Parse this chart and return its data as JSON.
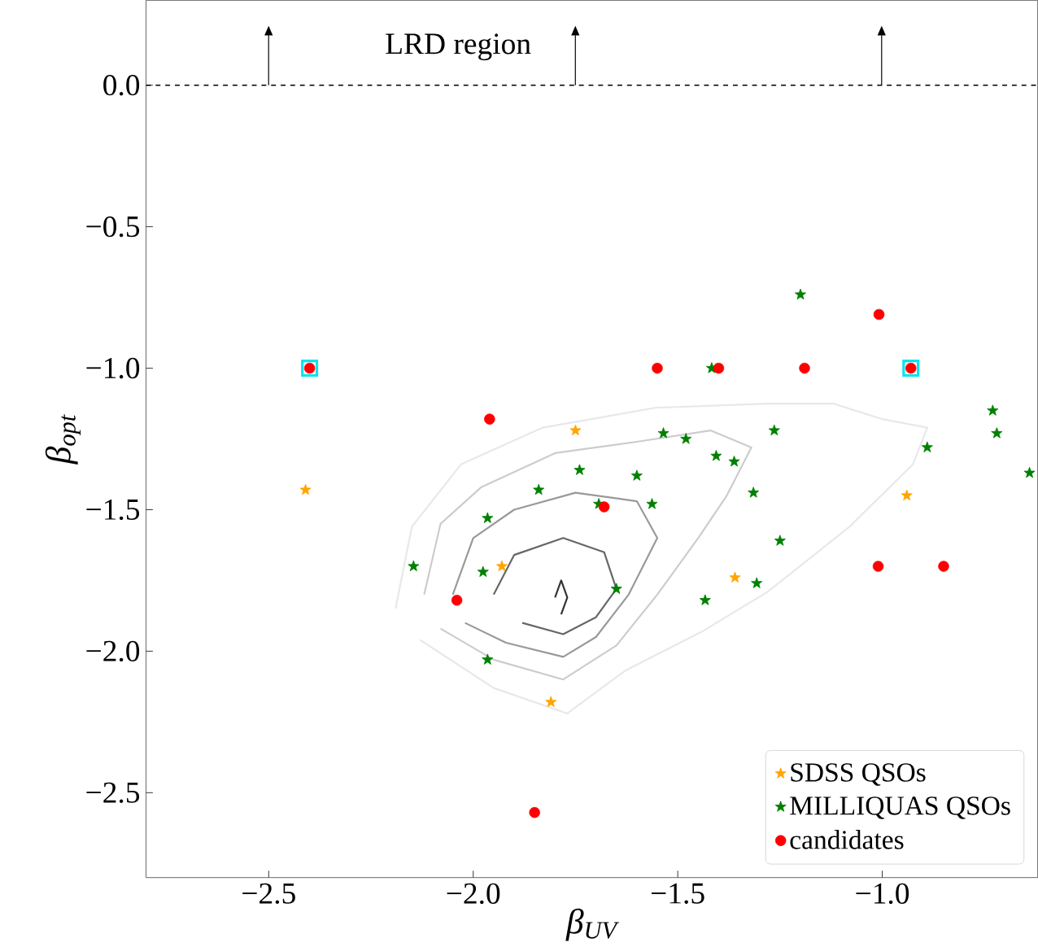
{
  "chart_data": {
    "type": "scatter",
    "xlabel": "β$_{UV}$",
    "ylabel": "β$_{opt}$",
    "xlim": [
      -2.8,
      -0.62
    ],
    "ylim": [
      -2.8,
      0.3
    ],
    "xticks": [
      {
        "value": -2.5,
        "label": "−2.5"
      },
      {
        "value": -2.0,
        "label": "−2.0"
      },
      {
        "value": -1.5,
        "label": "−1.5"
      },
      {
        "value": -1.0,
        "label": "−1.0"
      }
    ],
    "yticks": [
      {
        "value": 0.0,
        "label": "0.0"
      },
      {
        "value": -0.5,
        "label": "−0.5"
      },
      {
        "value": -1.0,
        "label": "−1.0"
      },
      {
        "value": -1.5,
        "label": "−1.5"
      },
      {
        "value": -2.0,
        "label": "−2.0"
      },
      {
        "value": -2.5,
        "label": "−2.5"
      }
    ],
    "legend": "bottom right",
    "grid": false,
    "ref_lines": [
      {
        "axis": "y",
        "value": 0.0,
        "color": "#000000",
        "line_style": "dashed"
      }
    ],
    "annotations": [
      "LRD region"
    ],
    "series": [
      {
        "type": "line",
        "marker": "none",
        "color": "#e8e8e8",
        "x": [
          -2.19,
          -2.15,
          -2.03,
          -1.83,
          -1.555,
          -1.28,
          -1.12,
          -1.0,
          -0.89,
          -0.925,
          -1.08,
          -1.28,
          -1.44,
          -1.63,
          -1.77,
          -1.95,
          -2.13
        ],
        "values": [
          -1.85,
          -1.56,
          -1.34,
          -1.21,
          -1.14,
          -1.125,
          -1.125,
          -1.18,
          -1.21,
          -1.34,
          -1.56,
          -1.79,
          -1.93,
          -2.07,
          -2.22,
          -2.13,
          -1.96
        ]
      },
      {
        "type": "line",
        "marker": "none",
        "color": "#cccccc",
        "x": [
          -2.12,
          -2.08,
          -1.98,
          -1.8,
          -1.6,
          -1.42,
          -1.32,
          -1.38,
          -1.45,
          -1.55,
          -1.65,
          -1.78,
          -1.95,
          -2.08
        ],
        "values": [
          -1.8,
          -1.55,
          -1.42,
          -1.3,
          -1.26,
          -1.22,
          -1.28,
          -1.45,
          -1.6,
          -1.8,
          -1.98,
          -2.1,
          -2.03,
          -1.92
        ]
      },
      {
        "type": "line",
        "marker": "none",
        "color": "#999999",
        "x": [
          -2.05,
          -2.0,
          -1.9,
          -1.75,
          -1.6,
          -1.55,
          -1.62,
          -1.7,
          -1.78,
          -1.92,
          -2.02
        ],
        "values": [
          -1.8,
          -1.6,
          -1.5,
          -1.44,
          -1.47,
          -1.6,
          -1.8,
          -1.95,
          -2.02,
          -1.97,
          -1.9
        ]
      },
      {
        "type": "line",
        "marker": "none",
        "color": "#666666",
        "x": [
          -1.95,
          -1.9,
          -1.78,
          -1.68,
          -1.65,
          -1.7,
          -1.78,
          -1.88
        ],
        "values": [
          -1.8,
          -1.66,
          -1.6,
          -1.65,
          -1.78,
          -1.88,
          -1.94,
          -1.9
        ]
      },
      {
        "type": "line",
        "marker": "none",
        "color": "#333333",
        "x": [
          -1.8,
          -1.785,
          -1.77,
          -1.785
        ],
        "values": [
          -1.81,
          -1.75,
          -1.81,
          -1.87
        ]
      },
      {
        "marker": "square",
        "color": "#00e5ee",
        "x": [
          -2.4,
          -0.93
        ],
        "values": [
          -1.0,
          -1.0
        ]
      },
      {
        "name": "SDSS QSOs",
        "marker": "star",
        "color": "#ffa500",
        "x": [
          -2.41,
          -1.75,
          -1.93,
          -1.81,
          -0.94,
          -1.36
        ],
        "values": [
          -1.43,
          -1.22,
          -1.7,
          -2.18,
          -1.45,
          -1.74
        ]
      },
      {
        "name": "MILLIQUAS QSOs",
        "marker": "star",
        "color": "#008000",
        "x": [
          -1.74,
          -1.84,
          -1.965,
          -2.146,
          -1.976,
          -1.965,
          -1.2,
          -1.417,
          -1.535,
          -1.48,
          -1.264,
          -1.6,
          -1.406,
          -1.362,
          -1.693,
          -1.563,
          -1.315,
          -1.25,
          -1.65,
          -1.307,
          -1.433,
          -0.89,
          -0.73,
          -0.72,
          -0.64
        ],
        "values": [
          -1.36,
          -1.43,
          -1.53,
          -1.7,
          -1.72,
          -2.03,
          -0.74,
          -1.0,
          -1.23,
          -1.25,
          -1.22,
          -1.38,
          -1.31,
          -1.33,
          -1.48,
          -1.48,
          -1.44,
          -1.61,
          -1.78,
          -1.76,
          -1.82,
          -1.28,
          -1.15,
          -1.23,
          -1.37
        ]
      },
      {
        "name": "candidates",
        "marker": "circle",
        "color": "#ff0000",
        "x": [
          -2.4,
          -1.96,
          -2.04,
          -1.68,
          -1.85,
          -1.55,
          -1.4,
          -1.19,
          -1.008,
          -0.93,
          -1.01,
          -0.85
        ],
        "values": [
          -1.0,
          -1.18,
          -1.82,
          -1.49,
          -2.57,
          -1.0,
          -1.0,
          -1.0,
          -0.81,
          -1.0,
          -1.7,
          -1.7
        ]
      }
    ]
  }
}
